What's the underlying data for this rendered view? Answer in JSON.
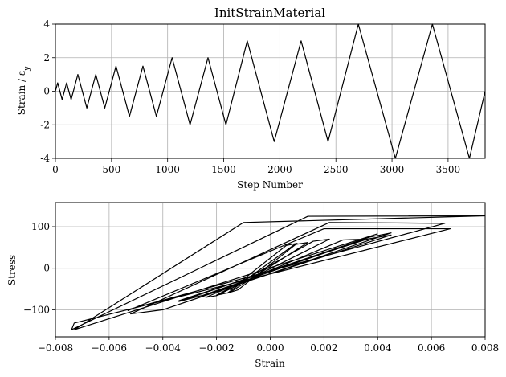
{
  "chart_data": [
    {
      "type": "line",
      "title": "InitStrainMaterial",
      "xlabel": "Step Number",
      "ylabel": "Strain / εy",
      "xlim": [
        0,
        3830
      ],
      "ylim": [
        -4,
        4
      ],
      "xticks": [
        0,
        500,
        1000,
        1500,
        2000,
        2500,
        3000,
        3500
      ],
      "yticks": [
        -4,
        -2,
        0,
        2,
        4
      ],
      "grid": true,
      "series": [
        {
          "x": [
            0,
            20,
            60,
            100,
            140,
            200,
            280,
            360,
            440,
            540,
            660,
            780,
            900,
            1040,
            1200,
            1360,
            1520,
            1710,
            1950,
            2190,
            2430,
            2700,
            3030,
            3360,
            3690,
            3830
          ],
          "y": [
            0,
            0.5,
            -0.5,
            0.5,
            -0.5,
            1,
            -1,
            1,
            -1,
            1.5,
            -1.5,
            1.5,
            -1.5,
            2,
            -2,
            2,
            -2,
            3,
            -3,
            3,
            -3,
            4,
            -4,
            4,
            -4,
            0
          ]
        }
      ]
    },
    {
      "type": "line",
      "title": "",
      "xlabel": "Strain",
      "ylabel": "Stress",
      "xlim": [
        -0.008,
        0.008
      ],
      "ylim": [
        -165,
        158
      ],
      "xticks": [
        -0.008,
        -0.006,
        -0.004,
        -0.002,
        0.0,
        0.002,
        0.004,
        0.006,
        0.008
      ],
      "xticklabels": [
        "−0.008",
        "−0.006",
        "−0.004",
        "−0.002",
        "0.000",
        "0.002",
        "0.004",
        "0.006",
        "0.008"
      ],
      "yticks": [
        -100,
        0,
        100
      ],
      "yticklabels": [
        "−100",
        "0",
        "100"
      ],
      "grid": true,
      "series": [
        {
          "x": [
            -0.0015,
            0.0006,
            0.001,
            -0.0012,
            -0.0016,
            0.0009,
            0.0014,
            -0.0015,
            -0.002,
            0.0016,
            0.0022,
            -0.002,
            -0.0024,
            0.0027,
            0.0035,
            -0.0025,
            -0.0034,
            0.0036,
            0.0045,
            -0.0025,
            -0.0034,
            0.0037,
            0.0045,
            -0.004,
            -0.0052,
            0.0022,
            0.0065,
            -0.0052,
            -0.0053,
            0.002,
            0.0067,
            -0.0073,
            -0.0074,
            0.0014,
            0.008,
            -0.001,
            -0.0073,
            0.004
          ],
          "y": [
            -52,
            55,
            60,
            -52,
            -60,
            57,
            62,
            -58,
            -65,
            65,
            70,
            -66,
            -70,
            68,
            70,
            -65,
            -78,
            70,
            80,
            -65,
            -80,
            75,
            85,
            -100,
            -110,
            110,
            108,
            -98,
            -102,
            95,
            95,
            -132,
            -148,
            125,
            126,
            110,
            -148,
            83
          ]
        }
      ]
    }
  ]
}
